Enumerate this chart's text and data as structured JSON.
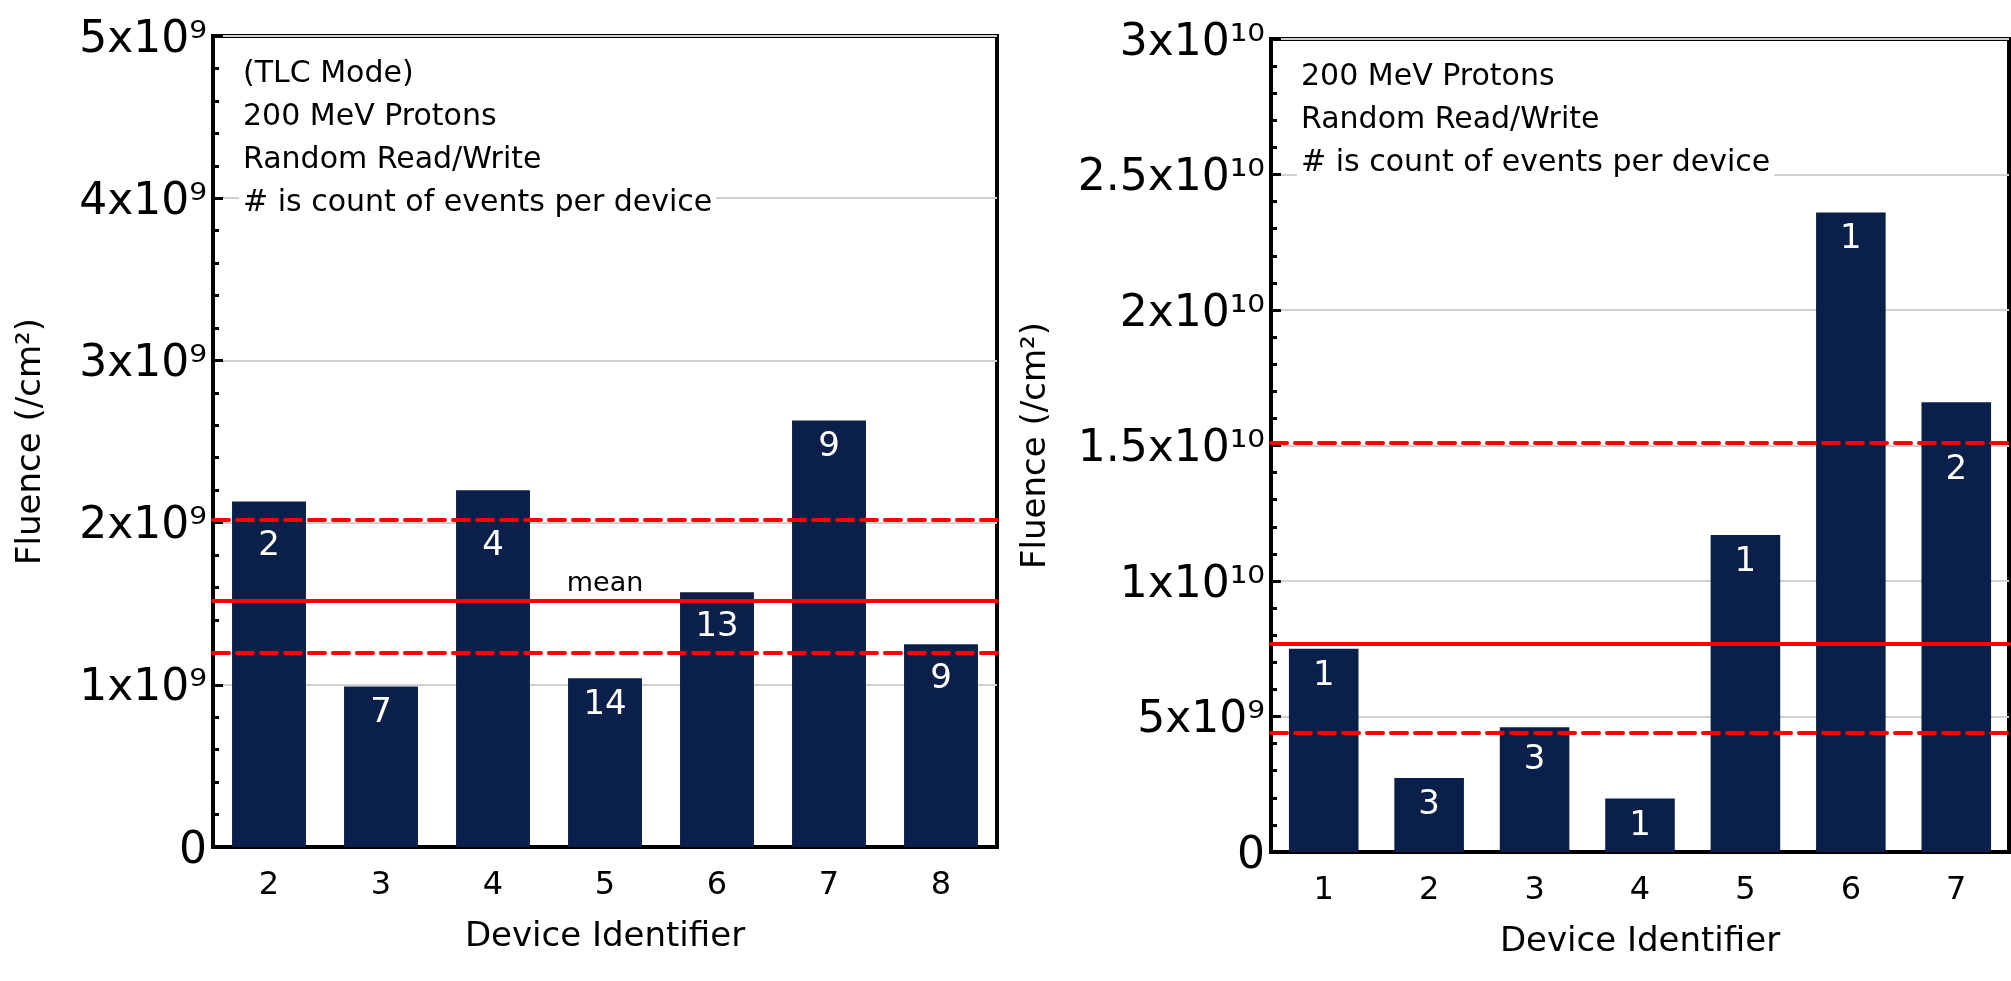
{
  "chart_data": [
    {
      "type": "bar",
      "xlabel": "Device Identifier",
      "ylabel": "Fluence (/cm²)",
      "categories": [
        "2",
        "3",
        "4",
        "5",
        "6",
        "7",
        "8"
      ],
      "values": [
        2130000000.0,
        990000000.0,
        2200000000.0,
        1040000000.0,
        1570000000.0,
        2630000000.0,
        1250000000.0
      ],
      "color": "#0a1f4a",
      "ylim": [
        0,
        5000000000.0
      ],
      "yticks": [
        0,
        {
          "value": 1000000000.0,
          "label": "1x10⁹"
        },
        {
          "value": 2000000000.0,
          "label": "2x10⁹"
        },
        {
          "value": 3000000000.0,
          "label": "3x10⁹"
        },
        {
          "value": 4000000000.0,
          "label": "4x10⁹"
        },
        {
          "value": 5000000000.0,
          "label": "5x10⁹"
        }
      ],
      "grid": "y",
      "ref_lines": [
        {
          "axis": "y",
          "value": 2020000000.0,
          "color": "#ff0000",
          "line_style": "dashed"
        },
        {
          "axis": "y",
          "value": 1520000000.0,
          "label": "mean",
          "color": "#ff0000",
          "line_style": "solid"
        },
        {
          "axis": "y",
          "value": 1200000000.0,
          "color": "#ff0000",
          "line_style": "dashed"
        }
      ],
      "annotations": [
        "(TLC Mode)",
        "200 MeV Protons",
        "Random Read/Write",
        "# is count of events per device",
        {
          "text": "2",
          "x": "2",
          "y": 2130000000.0
        },
        {
          "text": "7",
          "x": "3",
          "y": 990000000.0
        },
        {
          "text": "4",
          "x": "4",
          "y": 2200000000.0
        },
        {
          "text": "14",
          "x": "5",
          "y": 1040000000.0
        },
        {
          "text": "13",
          "x": "6",
          "y": 1570000000.0
        },
        {
          "text": "9",
          "x": "7",
          "y": 2630000000.0
        },
        {
          "text": "9",
          "x": "8",
          "y": 1250000000.0
        }
      ]
    },
    {
      "type": "bar",
      "xlabel": "Device Identifier",
      "ylabel": "Fluence (/cm²)",
      "categories": [
        "1",
        "2",
        "3",
        "4",
        "5",
        "6",
        "7"
      ],
      "values": [
        7500000000.0,
        2730000000.0,
        4600000000.0,
        1970000000.0,
        11700000000.0,
        23600000000.0,
        16600000000.0
      ],
      "color": "#0a1f4a",
      "ylim": [
        0,
        30000000000.0
      ],
      "yticks": [
        0,
        {
          "value": 5000000000.0,
          "label": "5x10⁹"
        },
        {
          "value": 10000000000.0,
          "label": "1x10¹⁰"
        },
        {
          "value": 15000000000.0,
          "label": "1.5x10¹⁰"
        },
        {
          "value": 20000000000.0,
          "label": "2x10¹⁰"
        },
        {
          "value": 25000000000.0,
          "label": "2.5x10¹⁰"
        },
        {
          "value": 30000000000.0,
          "label": "3x10¹⁰"
        }
      ],
      "grid": "y",
      "ref_lines": [
        {
          "axis": "y",
          "value": 15100000000.0,
          "color": "#ff0000",
          "line_style": "dashed"
        },
        {
          "axis": "y",
          "value": 7700000000.0,
          "color": "#ff0000",
          "line_style": "solid"
        },
        {
          "axis": "y",
          "value": 4400000000.0,
          "color": "#ff0000",
          "line_style": "dashed"
        }
      ],
      "annotations": [
        "200 MeV Protons",
        "Random Read/Write",
        "# is count of events per device",
        {
          "text": "1",
          "x": "1",
          "y": 7500000000.0
        },
        {
          "text": "3",
          "x": "2",
          "y": 2730000000.0
        },
        {
          "text": "3",
          "x": "3",
          "y": 4600000000.0
        },
        {
          "text": "1",
          "x": "4",
          "y": 1970000000.0
        },
        {
          "text": "1",
          "x": "5",
          "y": 11700000000.0
        },
        {
          "text": "1",
          "x": "6",
          "y": 23600000000.0
        },
        {
          "text": "2",
          "x": "7",
          "y": 16600000000.0
        }
      ]
    }
  ]
}
